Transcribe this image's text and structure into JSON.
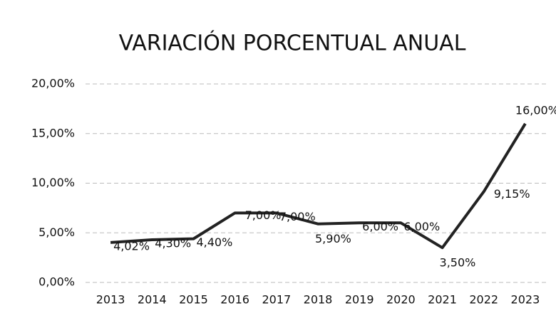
{
  "chart_data": {
    "type": "line",
    "title": "VARIACIÓN PORCENTUAL ANUAL",
    "categories": [
      "2013",
      "2014",
      "2015",
      "2016",
      "2017",
      "2018",
      "2019",
      "2020",
      "2021",
      "2022",
      "2023"
    ],
    "series": [
      {
        "color": "#222222",
        "values": [
          4.02,
          4.3,
          4.4,
          7.0,
          7.0,
          5.9,
          6.0,
          6.0,
          3.5,
          9.15,
          16.0
        ],
        "value_labels": [
          "4,02%",
          "4,30%",
          "4,40%",
          "7,00%",
          "7,00%",
          "5,90%",
          "6,00%",
          "6,00%",
          "3,50%",
          "9,15%",
          "16,00%"
        ]
      }
    ],
    "ylim": [
      0,
      20
    ],
    "yticks": [
      {
        "value": 0,
        "label": "0,00%"
      },
      {
        "value": 5,
        "label": "5,00%"
      },
      {
        "value": 10,
        "label": "10,00%"
      },
      {
        "value": 15,
        "label": "15,00%"
      },
      {
        "value": 20,
        "label": "20,00%"
      }
    ],
    "grid": true
  }
}
